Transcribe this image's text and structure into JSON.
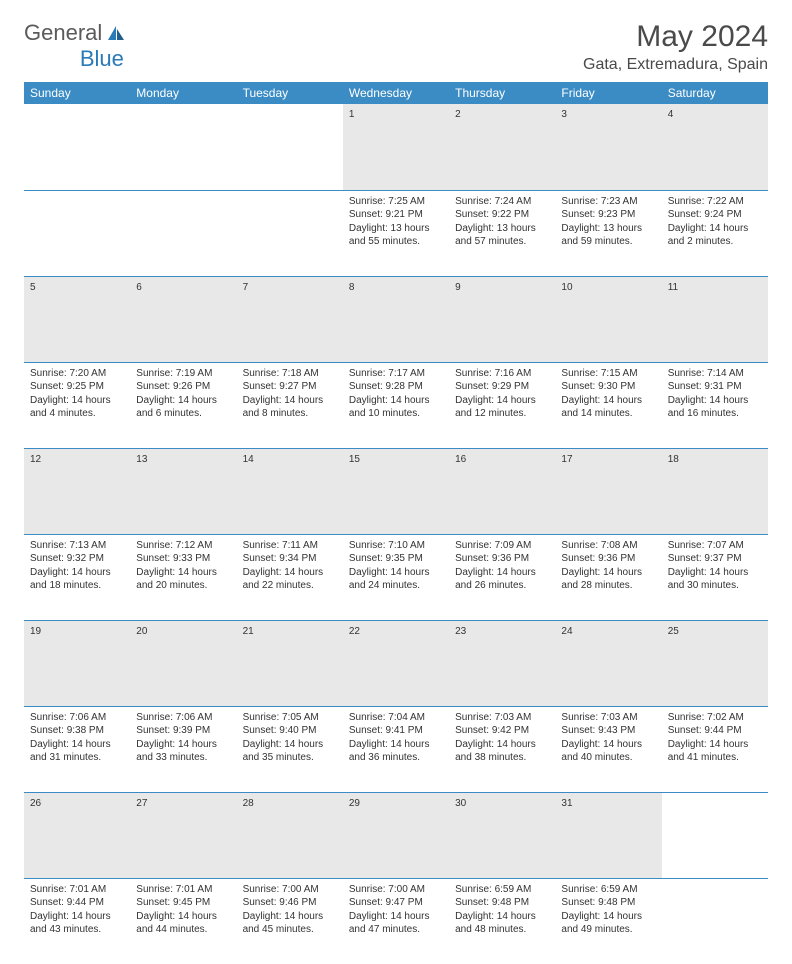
{
  "logo": {
    "text1": "General",
    "text2": "Blue"
  },
  "title": "May 2024",
  "location": "Gata, Extremadura, Spain",
  "colors": {
    "header_bg": "#3b8bc4",
    "header_text": "#ffffff",
    "daynum_bg": "#e8e8e8",
    "border": "#3b8bc4",
    "logo_gray": "#5a5a5a",
    "logo_blue": "#2a7ab8",
    "title_color": "#4a4a4a"
  },
  "weekdays": [
    "Sunday",
    "Monday",
    "Tuesday",
    "Wednesday",
    "Thursday",
    "Friday",
    "Saturday"
  ],
  "first_weekday_index": 3,
  "days": [
    {
      "n": 1,
      "sunrise": "7:25 AM",
      "sunset": "9:21 PM",
      "daylight": "13 hours and 55 minutes."
    },
    {
      "n": 2,
      "sunrise": "7:24 AM",
      "sunset": "9:22 PM",
      "daylight": "13 hours and 57 minutes."
    },
    {
      "n": 3,
      "sunrise": "7:23 AM",
      "sunset": "9:23 PM",
      "daylight": "13 hours and 59 minutes."
    },
    {
      "n": 4,
      "sunrise": "7:22 AM",
      "sunset": "9:24 PM",
      "daylight": "14 hours and 2 minutes."
    },
    {
      "n": 5,
      "sunrise": "7:20 AM",
      "sunset": "9:25 PM",
      "daylight": "14 hours and 4 minutes."
    },
    {
      "n": 6,
      "sunrise": "7:19 AM",
      "sunset": "9:26 PM",
      "daylight": "14 hours and 6 minutes."
    },
    {
      "n": 7,
      "sunrise": "7:18 AM",
      "sunset": "9:27 PM",
      "daylight": "14 hours and 8 minutes."
    },
    {
      "n": 8,
      "sunrise": "7:17 AM",
      "sunset": "9:28 PM",
      "daylight": "14 hours and 10 minutes."
    },
    {
      "n": 9,
      "sunrise": "7:16 AM",
      "sunset": "9:29 PM",
      "daylight": "14 hours and 12 minutes."
    },
    {
      "n": 10,
      "sunrise": "7:15 AM",
      "sunset": "9:30 PM",
      "daylight": "14 hours and 14 minutes."
    },
    {
      "n": 11,
      "sunrise": "7:14 AM",
      "sunset": "9:31 PM",
      "daylight": "14 hours and 16 minutes."
    },
    {
      "n": 12,
      "sunrise": "7:13 AM",
      "sunset": "9:32 PM",
      "daylight": "14 hours and 18 minutes."
    },
    {
      "n": 13,
      "sunrise": "7:12 AM",
      "sunset": "9:33 PM",
      "daylight": "14 hours and 20 minutes."
    },
    {
      "n": 14,
      "sunrise": "7:11 AM",
      "sunset": "9:34 PM",
      "daylight": "14 hours and 22 minutes."
    },
    {
      "n": 15,
      "sunrise": "7:10 AM",
      "sunset": "9:35 PM",
      "daylight": "14 hours and 24 minutes."
    },
    {
      "n": 16,
      "sunrise": "7:09 AM",
      "sunset": "9:36 PM",
      "daylight": "14 hours and 26 minutes."
    },
    {
      "n": 17,
      "sunrise": "7:08 AM",
      "sunset": "9:36 PM",
      "daylight": "14 hours and 28 minutes."
    },
    {
      "n": 18,
      "sunrise": "7:07 AM",
      "sunset": "9:37 PM",
      "daylight": "14 hours and 30 minutes."
    },
    {
      "n": 19,
      "sunrise": "7:06 AM",
      "sunset": "9:38 PM",
      "daylight": "14 hours and 31 minutes."
    },
    {
      "n": 20,
      "sunrise": "7:06 AM",
      "sunset": "9:39 PM",
      "daylight": "14 hours and 33 minutes."
    },
    {
      "n": 21,
      "sunrise": "7:05 AM",
      "sunset": "9:40 PM",
      "daylight": "14 hours and 35 minutes."
    },
    {
      "n": 22,
      "sunrise": "7:04 AM",
      "sunset": "9:41 PM",
      "daylight": "14 hours and 36 minutes."
    },
    {
      "n": 23,
      "sunrise": "7:03 AM",
      "sunset": "9:42 PM",
      "daylight": "14 hours and 38 minutes."
    },
    {
      "n": 24,
      "sunrise": "7:03 AM",
      "sunset": "9:43 PM",
      "daylight": "14 hours and 40 minutes."
    },
    {
      "n": 25,
      "sunrise": "7:02 AM",
      "sunset": "9:44 PM",
      "daylight": "14 hours and 41 minutes."
    },
    {
      "n": 26,
      "sunrise": "7:01 AM",
      "sunset": "9:44 PM",
      "daylight": "14 hours and 43 minutes."
    },
    {
      "n": 27,
      "sunrise": "7:01 AM",
      "sunset": "9:45 PM",
      "daylight": "14 hours and 44 minutes."
    },
    {
      "n": 28,
      "sunrise": "7:00 AM",
      "sunset": "9:46 PM",
      "daylight": "14 hours and 45 minutes."
    },
    {
      "n": 29,
      "sunrise": "7:00 AM",
      "sunset": "9:47 PM",
      "daylight": "14 hours and 47 minutes."
    },
    {
      "n": 30,
      "sunrise": "6:59 AM",
      "sunset": "9:48 PM",
      "daylight": "14 hours and 48 minutes."
    },
    {
      "n": 31,
      "sunrise": "6:59 AM",
      "sunset": "9:48 PM",
      "daylight": "14 hours and 49 minutes."
    }
  ],
  "labels": {
    "sunrise": "Sunrise:",
    "sunset": "Sunset:",
    "daylight": "Daylight:"
  }
}
